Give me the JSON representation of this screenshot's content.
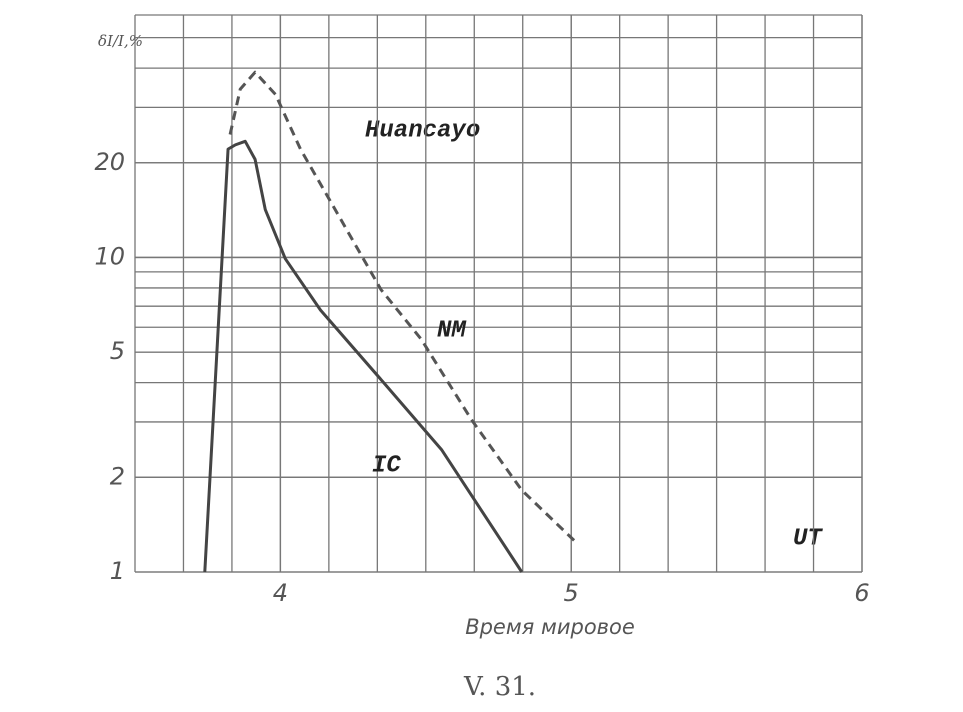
{
  "chart_data": {
    "type": "line",
    "caption": "V. 31.",
    "annotation": "Huancayo",
    "ylabel": "δI/I,%",
    "xlabel": "Время мировое",
    "x_unit_label": "UT",
    "log_y": true,
    "grid": true,
    "xlim": [
      3.5,
      6.0
    ],
    "xticks": [
      4,
      5,
      6
    ],
    "ylim": [
      1,
      59
    ],
    "yticks": [
      1,
      2,
      5,
      10,
      20
    ],
    "series": [
      {
        "name": "NM",
        "color": "#555555",
        "dashed": true,
        "x": [
          3.827,
          3.862,
          3.913,
          3.983,
          4.069,
          4.208,
          4.346,
          4.484,
          4.657,
          4.83,
          5.01
        ],
        "values": [
          24.6,
          34.3,
          38.8,
          33.0,
          22.1,
          13.2,
          7.9,
          5.5,
          3.05,
          1.82,
          1.26
        ]
      },
      {
        "name": "IC",
        "color": "#444444",
        "dashed": false,
        "x": [
          3.74,
          3.82,
          3.845,
          3.879,
          3.913,
          3.948,
          4.017,
          4.138,
          4.346,
          4.554,
          4.83
        ],
        "values": [
          1.0,
          22.1,
          22.8,
          23.4,
          20.5,
          14.2,
          9.9,
          6.8,
          4.09,
          2.45,
          1.0
        ]
      }
    ]
  }
}
